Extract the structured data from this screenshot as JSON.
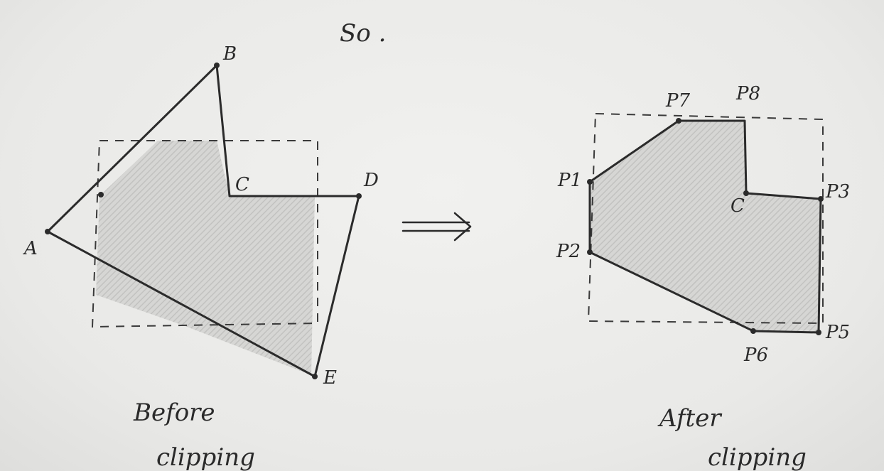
{
  "heading": "So .",
  "before": {
    "caption_line1": "Before",
    "caption_line2": "clipping",
    "vertices": {
      "A": "A",
      "B": "B",
      "C": "C",
      "D": "D",
      "E": "E"
    }
  },
  "after": {
    "caption_line1": "After",
    "caption_line2": "clipping",
    "vertices": {
      "P1": "P1",
      "P2": "P2",
      "P3": "P3",
      "P5": "P5",
      "P6": "P6",
      "P7": "P7",
      "P8": "P8",
      "C": "C"
    }
  },
  "arrow": "⟹",
  "colors": {
    "ink": "#2b2b2b",
    "shading": "#c9c9c7",
    "paper": "#ededeb"
  }
}
